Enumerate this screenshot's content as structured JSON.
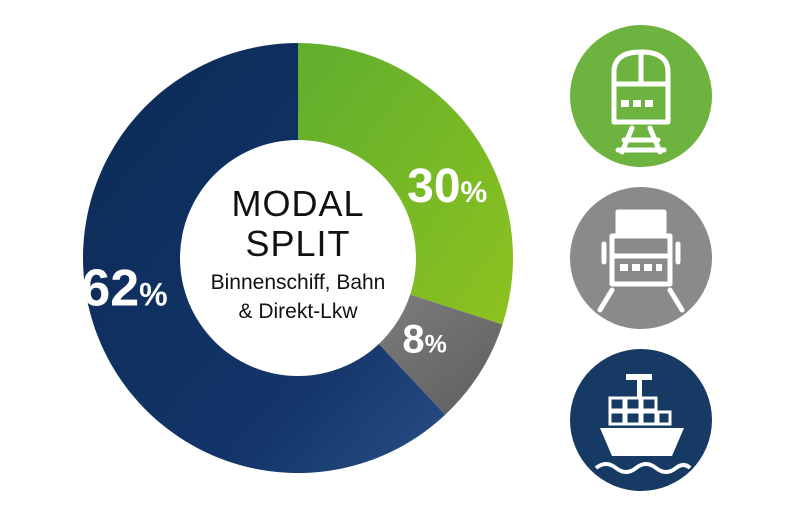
{
  "chart_data": {
    "type": "pie",
    "style": "donut",
    "title": [
      "MODAL",
      "SPLIT"
    ],
    "subtitle": [
      "Binnenschiff, Bahn",
      "& Direkt-Lkw"
    ],
    "categories": [
      "Bahn",
      "Direkt-Lkw",
      "Binnenschiff"
    ],
    "values": [
      30,
      8,
      62
    ],
    "unit": "%",
    "colors": [
      "#6db33f",
      "#6e6e6e",
      "#0f3461"
    ]
  },
  "legend_icons": [
    {
      "icon": "train-icon",
      "color": "#6db33f"
    },
    {
      "icon": "truck-icon",
      "color": "#8a8a8a"
    },
    {
      "icon": "ship-icon",
      "color": "#163a63"
    }
  ]
}
